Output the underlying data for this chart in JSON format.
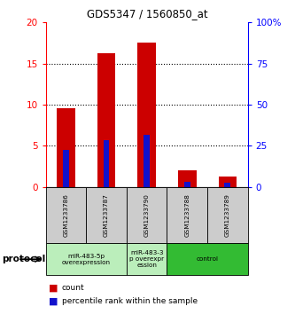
{
  "title": "GDS5347 / 1560850_at",
  "samples": [
    "GSM1233786",
    "GSM1233787",
    "GSM1233790",
    "GSM1233788",
    "GSM1233789"
  ],
  "red_values": [
    9.6,
    16.3,
    17.6,
    2.0,
    1.3
  ],
  "blue_values": [
    4.5,
    5.7,
    6.3,
    0.6,
    0.5
  ],
  "ylim_left": [
    0,
    20
  ],
  "ylim_right": [
    0,
    100
  ],
  "yticks_left": [
    0,
    5,
    10,
    15,
    20
  ],
  "ytick_labels_left": [
    "0",
    "5",
    "10",
    "15",
    "20"
  ],
  "yticks_right": [
    0,
    25,
    50,
    75,
    100
  ],
  "ytick_labels_right": [
    "0",
    "25",
    "50",
    "75",
    "100%"
  ],
  "protocol_label": "protocol",
  "legend_red": "count",
  "legend_blue": "percentile rank within the sample",
  "bar_color_red": "#cc0000",
  "bar_color_blue": "#1111cc",
  "bg_color": "#ffffff",
  "sample_bg_color": "#cccccc",
  "group1_color": "#bbeebb",
  "group2_color": "#33bb33",
  "dotted_grid_vals": [
    5,
    10,
    15
  ],
  "groups_info": [
    {
      "samples_idx": [
        0,
        1
      ],
      "label": "miR-483-5p\noverexpression"
    },
    {
      "samples_idx": [
        2
      ],
      "label": "miR-483-3\np overexpr\nession"
    },
    {
      "samples_idx": [
        3,
        4
      ],
      "label": "control"
    }
  ]
}
